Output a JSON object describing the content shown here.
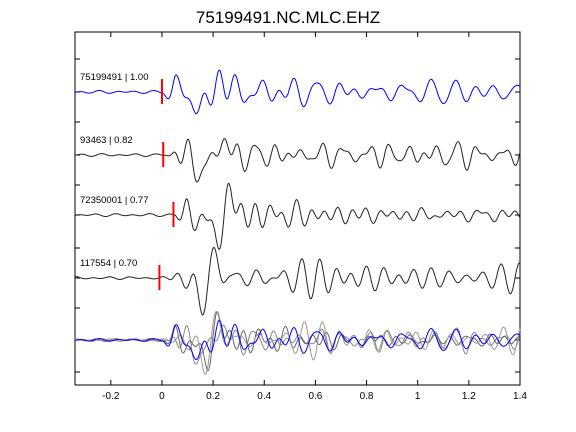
{
  "chart_data": {
    "type": "line",
    "title": "75199491.NC.MLC.EHZ",
    "xlabel": "",
    "ylabel": "",
    "xlim": [
      -0.34,
      1.4
    ],
    "x_ticks": [
      -0.2,
      0,
      0.2,
      0.4,
      0.6,
      0.8,
      1,
      1.2,
      1.4
    ],
    "x_tick_labels": [
      "-0.2",
      "0",
      "0.2",
      "0.4",
      "0.6",
      "0.8",
      "1",
      "1.2",
      "1.4"
    ],
    "grid": false,
    "legend": "none",
    "series": [
      {
        "name": "75199491 | 1.00",
        "label": "75199491 | 1.00",
        "color": "#0000ff",
        "pick_time": 0.0,
        "seed": 11,
        "amplitude": 1.0
      },
      {
        "name": "93463 | 0.82",
        "label": "93463 | 0.82",
        "color": "#222222",
        "pick_time": 0.005,
        "seed": 23,
        "amplitude": 0.95
      },
      {
        "name": "72350001 | 0.77",
        "label": "72350001 | 0.77",
        "color": "#222222",
        "pick_time": 0.045,
        "seed": 37,
        "amplitude": 1.0
      },
      {
        "name": "117554 | 0.70",
        "label": "117554 | 0.70",
        "color": "#222222",
        "pick_time": -0.01,
        "seed": 51,
        "amplitude": 0.95
      }
    ],
    "stack": {
      "colors": [
        "#888888",
        "#666666",
        "#999999",
        "#0000ff"
      ]
    },
    "pick_marker_color": "#ff0000"
  }
}
